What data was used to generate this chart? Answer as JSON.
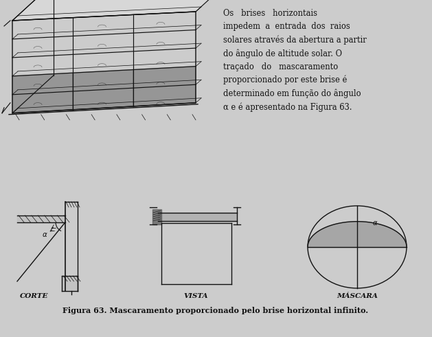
{
  "fig_width": 6.29,
  "fig_height": 4.91,
  "dpi": 100,
  "line_color": "#1a1a1a",
  "hatch_color": "#555555",
  "shade_color": "#aaaaaa",
  "bg_top": "#f5f5f5",
  "bg_bot": "#e8e8e8",
  "caption": "Figura 63. Mascaramento proporcionado pelo brise horizontal infinito.",
  "label_corte": "CORTE",
  "label_vista": "VISTA",
  "label_mascara": "MÁSCARA",
  "text_block": "Os   brises   horizontais\nimpedem  a  entrada  dos  raios\nsolares através da abertura a partir\ndo ângulo de altitude solar. O\ntraçado   do   mascaramento\nproporcionado por este brise é\ndeterminado em função do ângulo\nα e é apresentado na Figura 63."
}
